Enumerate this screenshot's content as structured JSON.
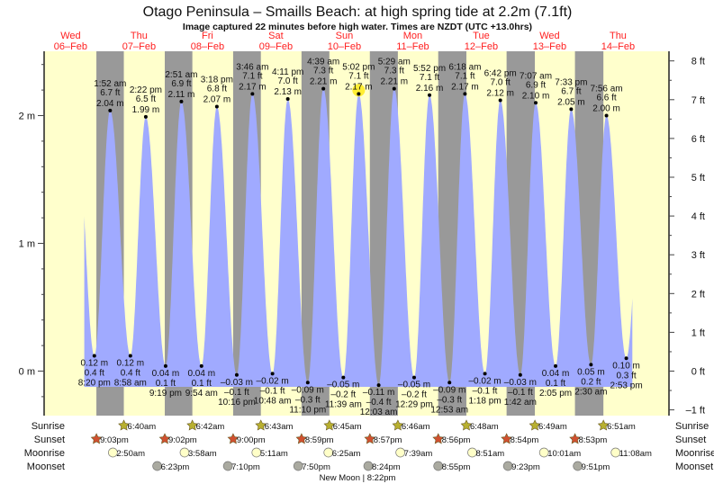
{
  "title": "Otago Peninsula – Smaills Beach: at high  spring tide at 2.2m (7.1ft)",
  "subtitle": "Image captured 22 minutes before high water. Times are NZDT (UTC +13.0hrs)",
  "colors": {
    "day": "#ffffcc",
    "night": "#999999",
    "water": "#a0aaff",
    "daylabel": "#ff2020",
    "sunrise": "#b8b030",
    "sunset": "#d05030",
    "moonrise": "#ffffc8",
    "moonset": "#aaaaa0",
    "highlight": "#ffee33"
  },
  "chart_data": {
    "type": "area",
    "title": "Otago Peninsula – Smaills Beach tide",
    "time_units": "hours since Wed 06-Feb 00:00 NZDT",
    "days": [
      {
        "dow": "Wed",
        "date": "06–Feb"
      },
      {
        "dow": "Thu",
        "date": "07–Feb"
      },
      {
        "dow": "Fri",
        "date": "08–Feb"
      },
      {
        "dow": "Sat",
        "date": "09–Feb"
      },
      {
        "dow": "Sun",
        "date": "10–Feb"
      },
      {
        "dow": "Mon",
        "date": "11–Feb"
      },
      {
        "dow": "Tue",
        "date": "12–Feb"
      },
      {
        "dow": "Wed",
        "date": "13–Feb"
      },
      {
        "dow": "Thu",
        "date": "14–Feb"
      }
    ],
    "left_axis": {
      "unit": "m",
      "ticks": [
        "2 m",
        "1 m",
        "0 m"
      ],
      "values": [
        2,
        1,
        0
      ]
    },
    "right_axis": {
      "unit": "ft",
      "ticks": [
        "8 ft",
        "7 ft",
        "6 ft",
        "5 ft",
        "4 ft",
        "3 ft",
        "2 ft",
        "1 ft",
        "0 ft",
        "–1 ft"
      ],
      "values": [
        8,
        7,
        6,
        5,
        4,
        3,
        2,
        1,
        0,
        -1
      ]
    },
    "extremes": [
      {
        "type": "low",
        "t": 20.33,
        "time": "8:20 pm",
        "ft": "0.4 ft",
        "m": 0.12
      },
      {
        "type": "high",
        "t": 25.87,
        "time": "1:52 am",
        "ft": "6.7 ft",
        "m": 2.04
      },
      {
        "type": "low",
        "t": 32.97,
        "time": "8:58 am",
        "ft": "0.4 ft",
        "m": 0.12
      },
      {
        "type": "high",
        "t": 38.37,
        "time": "2:22 pm",
        "ft": "6.5 ft",
        "m": 1.99
      },
      {
        "type": "low",
        "t": 45.32,
        "time": "9:19 pm",
        "ft": "0.1 ft",
        "m": 0.04
      },
      {
        "type": "high",
        "t": 50.85,
        "time": "2:51 am",
        "ft": "6.9 ft",
        "m": 2.11
      },
      {
        "type": "low",
        "t": 57.9,
        "time": "9:54 am",
        "ft": "0.1 ft",
        "m": 0.04
      },
      {
        "type": "high",
        "t": 63.3,
        "time": "3:18 pm",
        "ft": "6.8 ft",
        "m": 2.07
      },
      {
        "type": "low",
        "t": 70.27,
        "time": "10:16 pm",
        "ft": "–0.1 ft",
        "m": -0.03
      },
      {
        "type": "high",
        "t": 75.77,
        "time": "3:46 am",
        "ft": "7.1 ft",
        "m": 2.17
      },
      {
        "type": "low",
        "t": 82.8,
        "time": "10:48 am",
        "ft": "–0.1 ft",
        "m": -0.02
      },
      {
        "type": "high",
        "t": 88.18,
        "time": "4:11 pm",
        "ft": "7.0 ft",
        "m": 2.13
      },
      {
        "type": "low",
        "t": 95.17,
        "time": "11:10 pm",
        "ft": "–0.3 ft",
        "m": -0.09
      },
      {
        "type": "high",
        "t": 100.65,
        "time": "4:39 am",
        "ft": "7.3 ft",
        "m": 2.21
      },
      {
        "type": "low",
        "t": 107.65,
        "time": "11:39 am",
        "ft": "–0.2 ft",
        "m": -0.05
      },
      {
        "type": "high",
        "t": 113.03,
        "time": "5:02 pm",
        "ft": "7.1 ft",
        "m": 2.17,
        "current": true
      },
      {
        "type": "low",
        "t": 120.05,
        "time": "12:03 am",
        "ft": "–0.4 ft",
        "m": -0.11
      },
      {
        "type": "high",
        "t": 125.48,
        "time": "5:29 am",
        "ft": "7.3 ft",
        "m": 2.21
      },
      {
        "type": "low",
        "t": 132.48,
        "time": "12:29 pm",
        "ft": "–0.2 ft",
        "m": -0.05
      },
      {
        "type": "high",
        "t": 137.87,
        "time": "5:52 pm",
        "ft": "7.1 ft",
        "m": 2.16
      },
      {
        "type": "low",
        "t": 144.88,
        "time": "12:53 am",
        "ft": "–0.3 ft",
        "m": -0.09
      },
      {
        "type": "high",
        "t": 150.3,
        "time": "6:18 am",
        "ft": "7.1 ft",
        "m": 2.17
      },
      {
        "type": "low",
        "t": 157.3,
        "time": "1:18 pm",
        "ft": "–0.1 ft",
        "m": -0.02
      },
      {
        "type": "high",
        "t": 162.7,
        "time": "6:42 pm",
        "ft": "7.0 ft",
        "m": 2.12
      },
      {
        "type": "low",
        "t": 169.7,
        "time": "1:42 am",
        "ft": "–0.1 ft",
        "m": -0.03
      },
      {
        "type": "high",
        "t": 175.12,
        "time": "7:07 am",
        "ft": "6.9 ft",
        "m": 2.1
      },
      {
        "type": "low",
        "t": 182.08,
        "time": "2:05 pm",
        "ft": "0.1 ft",
        "m": 0.04
      },
      {
        "type": "high",
        "t": 187.55,
        "time": "7:33 pm",
        "ft": "6.7 ft",
        "m": 2.05
      },
      {
        "type": "low",
        "t": 194.5,
        "time": "2:30 am",
        "ft": "0.2 ft",
        "m": 0.05
      },
      {
        "type": "high",
        "t": 199.93,
        "time": "7:56 am",
        "ft": "6.6 ft",
        "m": 2.0
      },
      {
        "type": "low",
        "t": 206.88,
        "time": "2:53 pm",
        "ft": "0.3 ft",
        "m": 0.1
      }
    ],
    "curve_range": [
      16.8,
      209
    ],
    "row_labels": {
      "sunrise": "Sunrise",
      "sunset": "Sunset",
      "moonrise": "Moonrise",
      "moonset": "Moonset"
    },
    "sunrise": [
      {
        "t": 30.67,
        "label": "6:40am"
      },
      {
        "t": 54.7,
        "label": "6:42am"
      },
      {
        "t": 78.72,
        "label": "6:43am"
      },
      {
        "t": 102.75,
        "label": "6:45am"
      },
      {
        "t": 126.77,
        "label": "6:46am"
      },
      {
        "t": 150.8,
        "label": "6:48am"
      },
      {
        "t": 174.82,
        "label": "6:49am"
      },
      {
        "t": 198.85,
        "label": "6:51am"
      }
    ],
    "sunset": [
      {
        "t": 21.05,
        "label": "9:03pm"
      },
      {
        "t": 45.03,
        "label": "9:02pm"
      },
      {
        "t": 69.0,
        "label": "9:00pm"
      },
      {
        "t": 92.98,
        "label": "8:59pm"
      },
      {
        "t": 116.95,
        "label": "8:57pm"
      },
      {
        "t": 140.93,
        "label": "8:56pm"
      },
      {
        "t": 164.9,
        "label": "8:54pm"
      },
      {
        "t": 188.88,
        "label": "8:53pm"
      }
    ],
    "moonrise": [
      {
        "t": 26.83,
        "label": "2:50am"
      },
      {
        "t": 51.97,
        "label": "3:58am"
      },
      {
        "t": 77.18,
        "label": "5:11am"
      },
      {
        "t": 102.42,
        "label": "6:25am"
      },
      {
        "t": 127.65,
        "label": "7:39am"
      },
      {
        "t": 152.85,
        "label": "8:51am"
      },
      {
        "t": 178.02,
        "label": "10:01am"
      },
      {
        "t": 203.13,
        "label": "11:08am"
      }
    ],
    "moonset": [
      {
        "t": 42.38,
        "label": "6:23pm"
      },
      {
        "t": 67.17,
        "label": "7:10pm"
      },
      {
        "t": 91.83,
        "label": "7:50pm"
      },
      {
        "t": 116.4,
        "label": "8:24pm"
      },
      {
        "t": 140.92,
        "label": "8:55pm"
      },
      {
        "t": 165.38,
        "label": "9:23pm"
      },
      {
        "t": 189.85,
        "label": "9:51pm"
      }
    ],
    "moon_phase": "New Moon | 8:22pm"
  }
}
